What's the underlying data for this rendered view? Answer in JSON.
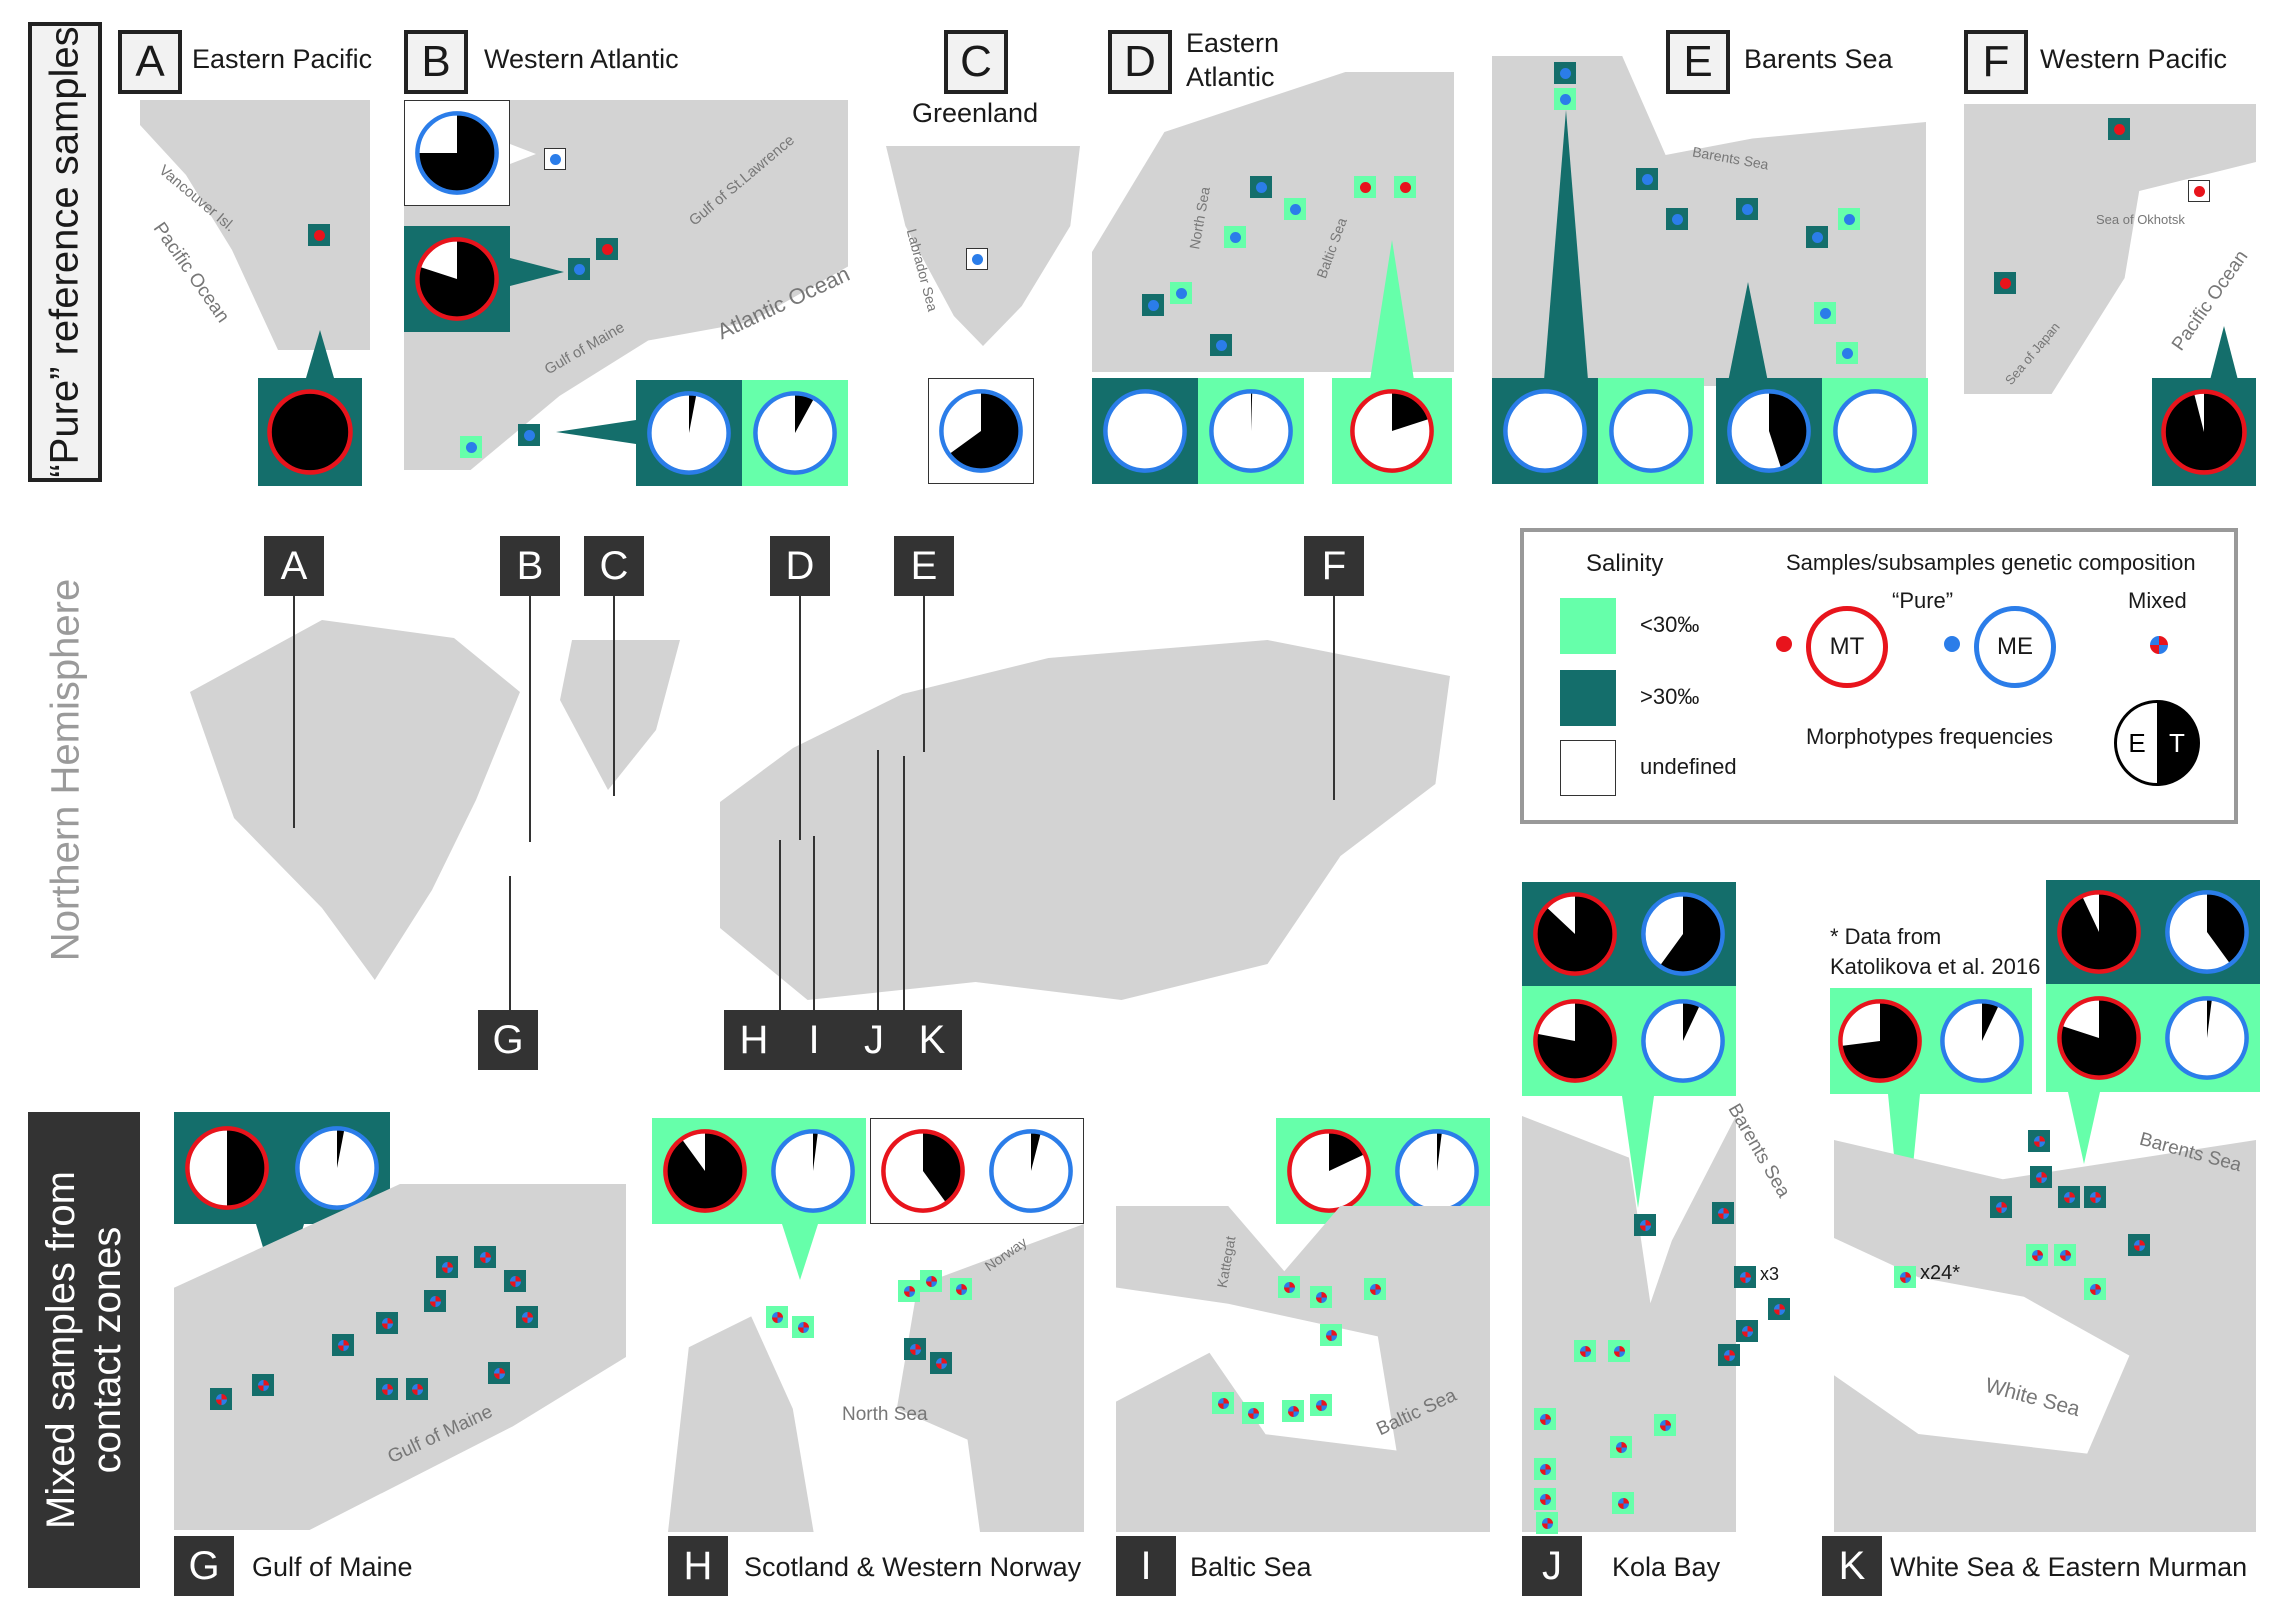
{
  "side_labels": {
    "top": "“Pure” reference samples",
    "middle": "Northern Hemisphere",
    "bottom_line1": "Mixed samples from",
    "bottom_line2": "contact zones"
  },
  "top_regions": [
    {
      "letter": "A",
      "name": "Eastern  Pacific",
      "place_names": [
        "Vancouver Isl.",
        "Pacific Ocean"
      ]
    },
    {
      "letter": "B",
      "name": "Western Atlantic",
      "place_names": [
        "Gulf of St.Lawrence",
        "Gulf of Maine",
        "Atlantic Ocean"
      ]
    },
    {
      "letter": "C",
      "name": "Greenland",
      "place_names": [
        "Labrador Sea"
      ]
    },
    {
      "letter": "D",
      "name_line1": "Eastern",
      "name_line2": "Atlantic",
      "place_names": [
        "North Sea",
        "Baltic Sea"
      ]
    },
    {
      "letter": "E",
      "name": "Barents Sea",
      "place_names": [
        "Barents Sea"
      ]
    },
    {
      "letter": "F",
      "name": "Western Pacific",
      "place_names": [
        "Sea of Okhotsk",
        "Sea of Japan",
        "Pacific Ocean"
      ]
    }
  ],
  "world_map_labels": [
    "A",
    "B",
    "C",
    "D",
    "E",
    "F",
    "G",
    "H",
    "I",
    "J",
    "K"
  ],
  "legend": {
    "salinity_title": "Salinity",
    "salinity_items": [
      {
        "label": "<30‰",
        "color": "#66ffaa"
      },
      {
        "label": ">30‰",
        "color": "#146e6b"
      },
      {
        "label": "undefined",
        "color": "#ffffff"
      }
    ],
    "composition_title": "Samples/subsamples genetic composition",
    "pure_label": "“Pure”",
    "mixed_label": "Mixed",
    "mt_label": "MT",
    "me_label": "ME",
    "morpho_title": "Morphotypes frequencies",
    "e_label": "E",
    "t_label": "T",
    "colors": {
      "MT": "#e8141c",
      "ME": "#2b7de9",
      "T": "#000000",
      "E": "#ffffff"
    }
  },
  "bottom_regions": [
    {
      "letter": "G",
      "name": "Gulf of Maine",
      "place_names": [
        "Gulf of Maine"
      ]
    },
    {
      "letter": "H",
      "name": "Scotland & Western Norway",
      "place_names": [
        "North Sea",
        "Norway"
      ]
    },
    {
      "letter": "I",
      "name": "Baltic Sea",
      "place_names": [
        "Kattegat",
        "Baltic Sea"
      ]
    },
    {
      "letter": "J",
      "name": "Kola Bay",
      "place_names": [
        "Barents Sea"
      ],
      "annotation": "x3"
    },
    {
      "letter": "K",
      "name": "White Sea & Eastern Murman",
      "place_names": [
        "Barents Sea",
        "White Sea"
      ],
      "annotation": "x24*"
    }
  ],
  "footnote": {
    "line1": "* Data from",
    "line2": "Katolikova et al. 2016"
  },
  "pies": [
    {
      "id": "A",
      "ring": "MT",
      "T": 1.0
    },
    {
      "id": "B-white",
      "ring": "ME",
      "T": 0.75
    },
    {
      "id": "B-teal",
      "ring": "MT",
      "T": 0.8
    },
    {
      "id": "B-1",
      "ring": "ME",
      "T": 0.03
    },
    {
      "id": "B-2",
      "ring": "ME",
      "T": 0.08
    },
    {
      "id": "C",
      "ring": "ME",
      "T": 0.65
    },
    {
      "id": "D-1",
      "ring": "ME",
      "T": 0.0
    },
    {
      "id": "D-2",
      "ring": "ME",
      "T": 0.005
    },
    {
      "id": "D-3",
      "ring": "MT",
      "T": 0.2
    },
    {
      "id": "E-1",
      "ring": "ME",
      "T": 0.0
    },
    {
      "id": "E-2",
      "ring": "ME",
      "T": 0.0
    },
    {
      "id": "E-3",
      "ring": "ME",
      "T": 0.45
    },
    {
      "id": "E-4",
      "ring": "ME",
      "T": 0.0
    },
    {
      "id": "F",
      "ring": "MT",
      "T": 0.96
    },
    {
      "id": "G-1",
      "ring": "MT",
      "T": 0.5
    },
    {
      "id": "G-2",
      "ring": "ME",
      "T": 0.03
    },
    {
      "id": "H-1",
      "ring": "MT",
      "T": 0.9
    },
    {
      "id": "H-2",
      "ring": "ME",
      "T": 0.02
    },
    {
      "id": "H-3",
      "ring": "MT",
      "T": 0.4
    },
    {
      "id": "H-4",
      "ring": "ME",
      "T": 0.04
    },
    {
      "id": "I-1",
      "ring": "MT",
      "T": 0.18
    },
    {
      "id": "I-2",
      "ring": "ME",
      "T": 0.02
    },
    {
      "id": "J-1",
      "ring": "MT",
      "T": 0.87
    },
    {
      "id": "J-2",
      "ring": "ME",
      "T": 0.6
    },
    {
      "id": "J-3",
      "ring": "MT",
      "T": 0.78
    },
    {
      "id": "J-4",
      "ring": "ME",
      "T": 0.07
    },
    {
      "id": "K-1",
      "ring": "MT",
      "T": 0.73
    },
    {
      "id": "K-2",
      "ring": "ME",
      "T": 0.07
    },
    {
      "id": "K-3",
      "ring": "MT",
      "T": 0.93
    },
    {
      "id": "K-4",
      "ring": "ME",
      "T": 0.4
    },
    {
      "id": "K-5",
      "ring": "MT",
      "T": 0.8
    },
    {
      "id": "K-6",
      "ring": "ME",
      "T": 0.02
    }
  ]
}
